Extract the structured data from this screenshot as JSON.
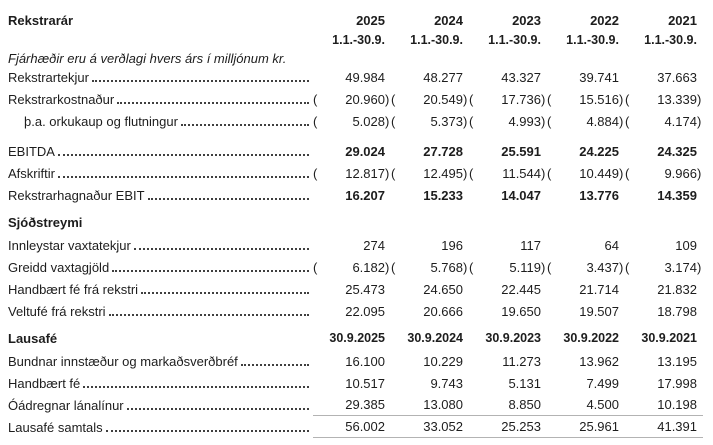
{
  "colors": {
    "background": "#ffffff",
    "text": "#1d1d1d",
    "leader_dots": "#3f3f3f",
    "rule_line": "#b3b3b3"
  },
  "table": {
    "rows": [
      {
        "kind": "header",
        "name": "years-header-row",
        "label": "Rekstrarár",
        "cells": [
          "2025",
          "2024",
          "2023",
          "2022",
          "2021"
        ]
      },
      {
        "kind": "subheader",
        "name": "period-row",
        "label": "",
        "cells": [
          "1.1.-30.9.",
          "1.1.-30.9.",
          "1.1.-30.9.",
          "1.1.-30.9.",
          "1.1.-30.9."
        ]
      },
      {
        "kind": "note",
        "name": "amounts-note-row",
        "label": "Fjárhæðir eru á verðlagi hvers árs í milljónum kr."
      },
      {
        "kind": "data",
        "name": "row-rekstrartekjur",
        "label": "Rekstrartekjur",
        "values": [
          "49.984",
          "48.277",
          "43.327",
          "39.741",
          "37.663"
        ]
      },
      {
        "kind": "data",
        "name": "row-rekstrarkostnadur",
        "label": "Rekstrarkostnaður",
        "negative": true,
        "values": [
          "20.960",
          "20.549",
          "17.736",
          "15.516",
          "13.339"
        ]
      },
      {
        "kind": "data",
        "name": "row-orkukaup-og-flutningur",
        "label": "þ.a. orkukaup og flutningur",
        "indent": true,
        "negative": true,
        "values": [
          "5.028",
          "5.373",
          "4.993",
          "4.884",
          "4.174"
        ]
      },
      {
        "kind": "spacer",
        "name": "section-gap"
      },
      {
        "kind": "data",
        "name": "row-ebitda",
        "label": "EBITDA",
        "bold_values": true,
        "values": [
          "29.024",
          "27.728",
          "25.591",
          "24.225",
          "24.325"
        ]
      },
      {
        "kind": "data",
        "name": "row-afskriftir",
        "label": "Afskriftir",
        "negative": true,
        "values": [
          "12.817",
          "12.495",
          "11.544",
          "10.449",
          "9.966"
        ]
      },
      {
        "kind": "data",
        "name": "row-rekstrarhagnadur-ebit",
        "label": "Rekstrarhagnaður EBIT",
        "bold_values": true,
        "values": [
          "16.207",
          "15.233",
          "14.047",
          "13.776",
          "14.359"
        ]
      },
      {
        "kind": "section",
        "name": "section-sjodstreymi",
        "label": "Sjóðstreymi"
      },
      {
        "kind": "data",
        "name": "row-innleystar-vaxtatekjur",
        "label": "Innleystar vaxtatekjur",
        "values": [
          "274",
          "196",
          "117",
          "64",
          "109"
        ]
      },
      {
        "kind": "data",
        "name": "row-greidd-vaxtagjold",
        "label": "Greidd vaxtagjöld",
        "negative": true,
        "values": [
          "6.182",
          "5.768",
          "5.119",
          "3.437",
          "3.174"
        ]
      },
      {
        "kind": "data",
        "name": "row-handbaert-fe-fra-rekstri",
        "label": "Handbært fé frá rekstri",
        "values": [
          "25.473",
          "24.650",
          "22.445",
          "21.714",
          "21.832"
        ]
      },
      {
        "kind": "data",
        "name": "row-veltufe-fra-rekstri",
        "label": "Veltufé frá rekstri",
        "values": [
          "22.095",
          "20.666",
          "19.650",
          "19.507",
          "18.798"
        ]
      },
      {
        "kind": "section_dates",
        "name": "section-lausafe",
        "label": "Lausafé",
        "cells": [
          "30.9.2025",
          "30.9.2024",
          "30.9.2023",
          "30.9.2022",
          "30.9.2021"
        ]
      },
      {
        "kind": "data",
        "name": "row-bundnar-innstaedur",
        "label": "Bundnar innstæður og markaðsverðbréf",
        "values": [
          "16.100",
          "10.229",
          "11.273",
          "13.962",
          "13.195"
        ]
      },
      {
        "kind": "data",
        "name": "row-handbaert-fe",
        "label": "Handbært fé",
        "values": [
          "10.517",
          "9.743",
          "5.131",
          "7.499",
          "17.998"
        ]
      },
      {
        "kind": "data",
        "name": "row-oadregnar-lanalinur",
        "label": "Óádregnar lánalínur",
        "values": [
          "29.385",
          "13.080",
          "8.850",
          "4.500",
          "10.198"
        ],
        "rule_below": true
      },
      {
        "kind": "data",
        "name": "row-lausafe-samtals",
        "label": "Lausafé samtals",
        "values": [
          "56.002",
          "33.052",
          "25.253",
          "25.961",
          "41.391"
        ],
        "rule_below": true
      }
    ]
  }
}
